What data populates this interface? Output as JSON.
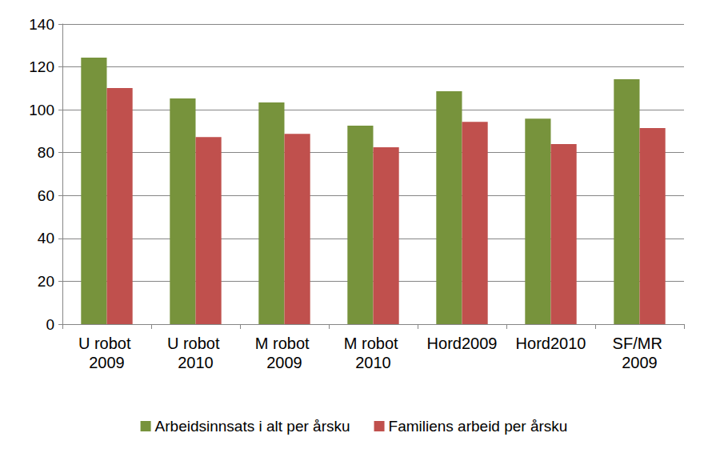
{
  "chart_data": {
    "type": "bar",
    "categories": [
      "U robot 2009",
      "U robot 2010",
      "M robot 2009",
      "M robot 2010",
      "Hord2009",
      "Hord2010",
      "SF/MR 2009"
    ],
    "series": [
      {
        "name": "Arbeidsinnsats i alt per årsku",
        "color": "#77933c",
        "values": [
          124.3,
          105.3,
          103.4,
          92.6,
          108.6,
          95.9,
          114.2
        ]
      },
      {
        "name": "Familiens arbeid per årsku",
        "color": "#c0504d",
        "values": [
          110.1,
          87.3,
          88.8,
          82.5,
          94.4,
          84,
          91.5
        ]
      }
    ],
    "ylim": [
      0,
      140
    ],
    "yticks": [
      0,
      20,
      40,
      60,
      80,
      100,
      120,
      140
    ],
    "grid": true,
    "legend": "bottom"
  }
}
